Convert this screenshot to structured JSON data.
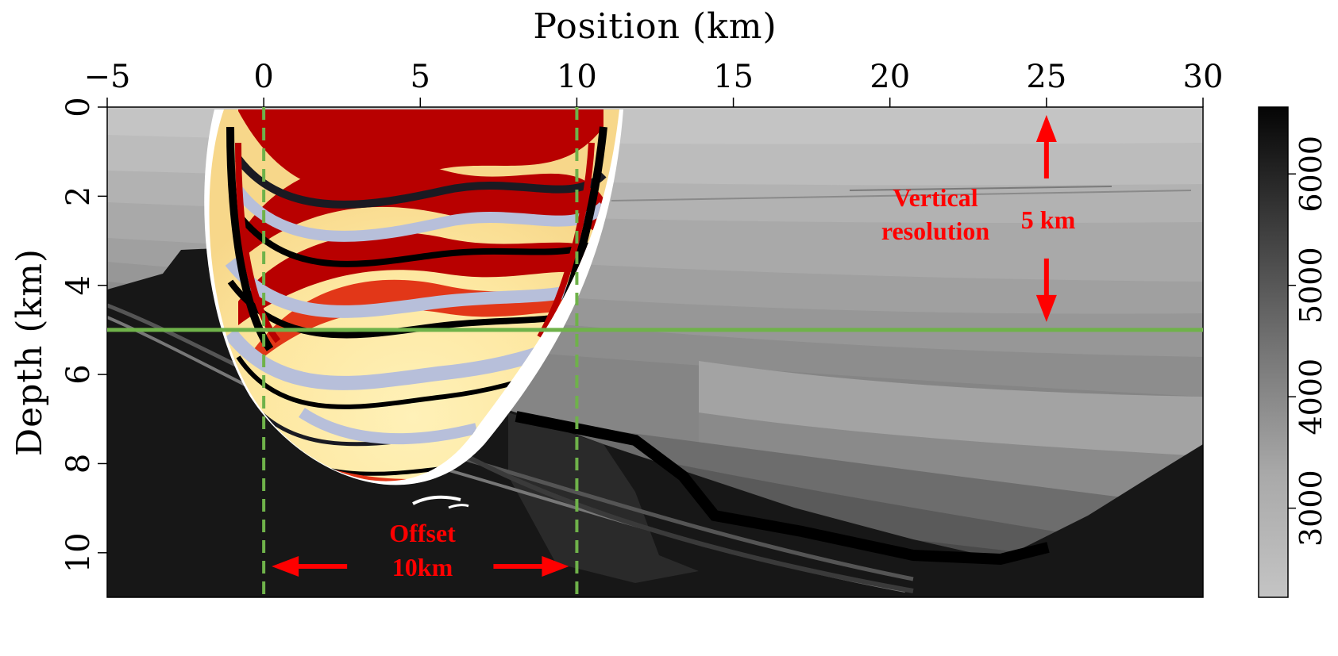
{
  "chart_data": {
    "type": "heatmap",
    "title": "",
    "xlabel": "Position (km)",
    "ylabel": "Depth (km)",
    "xlim": [
      -5,
      30
    ],
    "ylim": [
      0,
      11
    ],
    "x_ticks": [
      -5,
      0,
      5,
      10,
      15,
      20,
      25,
      30
    ],
    "y_ticks": [
      0,
      2,
      4,
      6,
      8,
      10
    ],
    "colorbar": {
      "ticks": [
        3000,
        4000,
        5000,
        6000
      ],
      "range": [
        2200,
        6600
      ],
      "colormap": "gray",
      "low_color": "#c2c2c2",
      "high_color": "#050505"
    },
    "overlay": {
      "colormap": "seismic red-white-blue/black",
      "colors": [
        "#b80000",
        "#f23a1c",
        "#fbe07a",
        "#fff7d6",
        "#ffffff",
        "#b7bfda",
        "#4b5678",
        "#000000"
      ]
    },
    "annotations": {
      "offset_label_line1": "Offset",
      "offset_label_line2": "10km",
      "offset_start_km": 0,
      "offset_end_km": 10,
      "vertical_label_line1": "Vertical",
      "vertical_label_line2": "resolution",
      "vertical_size_label": "5 km",
      "vertical_arrow_x_km": 25,
      "vertical_top_km": 0,
      "vertical_bottom_km": 5,
      "horizontal_line_depth_km": 5,
      "annotation_color": "#ff0000",
      "guide_line_color": "#6fb24a"
    }
  }
}
